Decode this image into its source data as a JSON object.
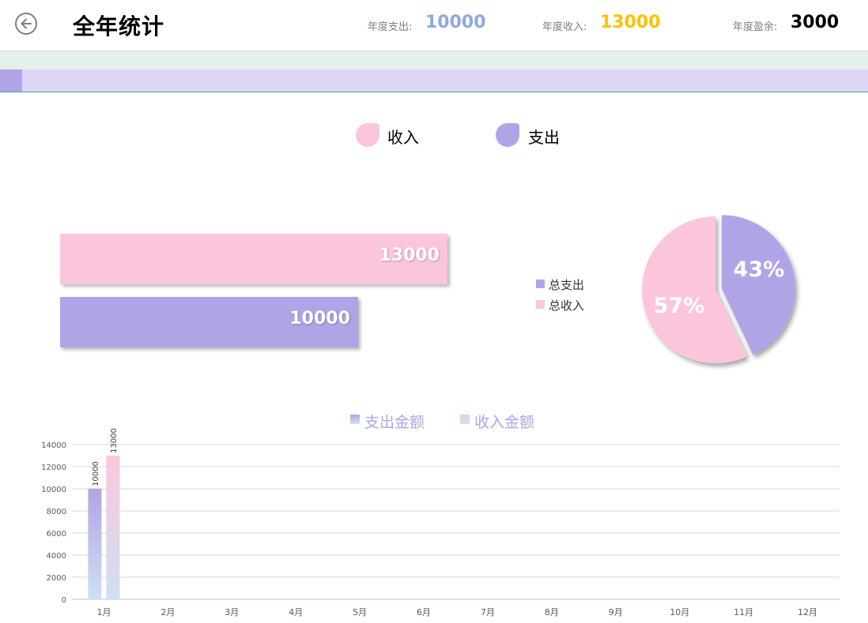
{
  "header": {
    "title": "全年统计",
    "expense_label": "年度支出:",
    "expense_value": "10000",
    "income_label": "年度收入:",
    "income_value": "13000",
    "surplus_label": "年度盈余:",
    "surplus_value": "3000",
    "back_icon": "back-arrow-icon"
  },
  "colors": {
    "income": "#fbc6dc",
    "expense": "#b1a4e6",
    "expense_value": "#8eaadc",
    "income_value": "#ffc000",
    "strip_green": "#e6f0ea",
    "strip_purple": "#dcd6f4"
  },
  "top_legend": {
    "income": "收入",
    "expense": "支出"
  },
  "chart_data": [
    {
      "type": "bar",
      "orientation": "horizontal",
      "categories": [
        "收入",
        "支出"
      ],
      "values": [
        13000,
        10000
      ],
      "data_labels": [
        "13000",
        "10000"
      ]
    },
    {
      "type": "pie",
      "legend": [
        "总支出",
        "总收入"
      ],
      "labels": [
        "43%",
        "57%"
      ],
      "values": [
        43,
        57
      ]
    },
    {
      "type": "bar",
      "categories": [
        "1月",
        "2月",
        "3月",
        "4月",
        "5月",
        "6月",
        "7月",
        "8月",
        "9月",
        "10月",
        "11月",
        "12月"
      ],
      "series": [
        {
          "name": "支出金额",
          "values": [
            10000,
            0,
            0,
            0,
            0,
            0,
            0,
            0,
            0,
            0,
            0,
            0
          ]
        },
        {
          "name": "收入金额",
          "values": [
            13000,
            0,
            0,
            0,
            0,
            0,
            0,
            0,
            0,
            0,
            0,
            0
          ]
        }
      ],
      "data_labels": [
        "10000",
        "13000"
      ],
      "yticks": [
        "0",
        "2000",
        "4000",
        "6000",
        "8000",
        "10000",
        "12000",
        "14000"
      ],
      "ylim": [
        0,
        14000
      ],
      "grid": true,
      "legend_position": "top"
    }
  ]
}
